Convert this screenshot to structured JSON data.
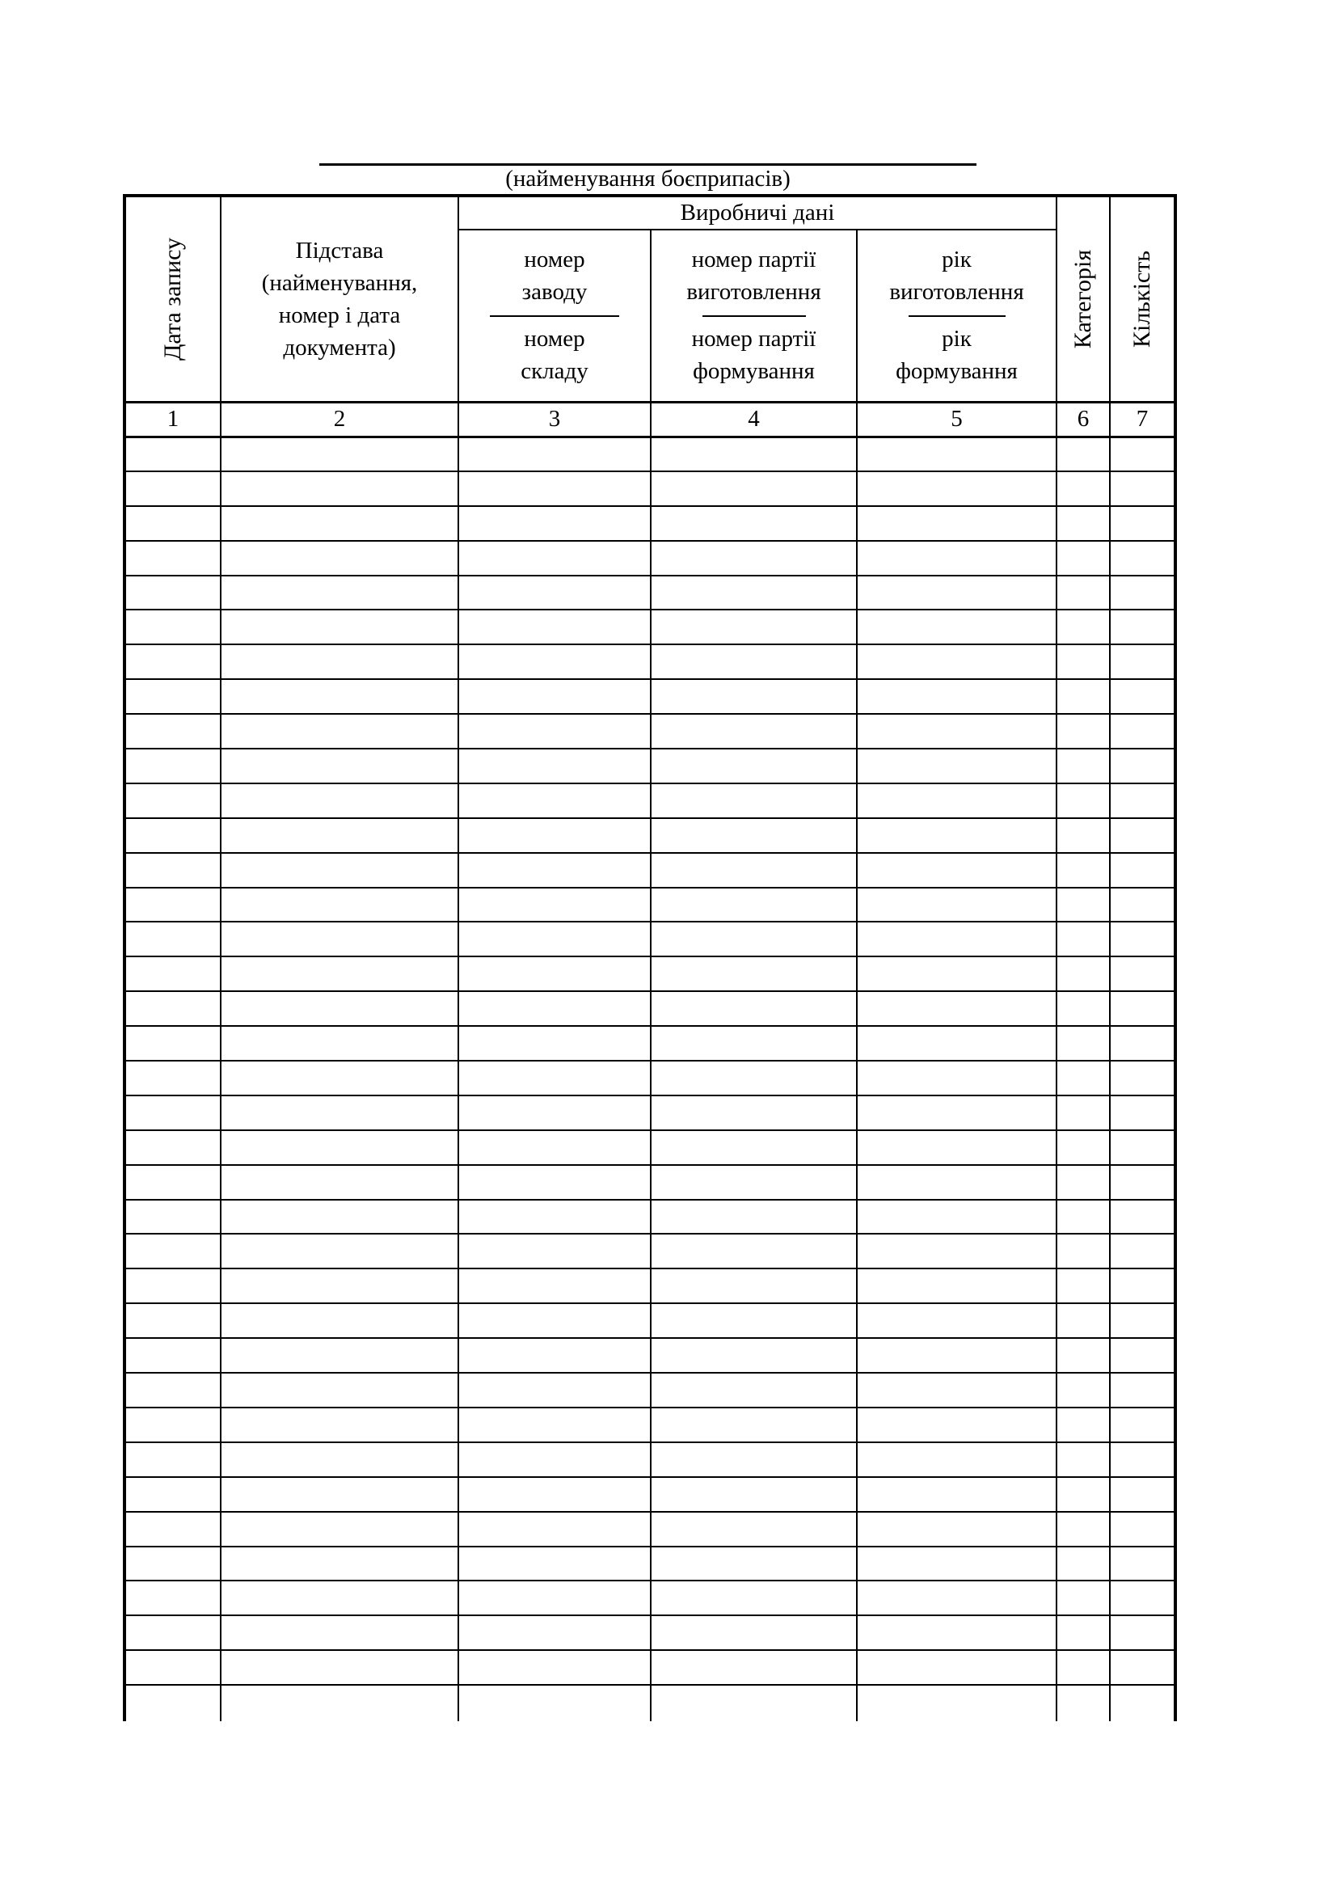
{
  "document": {
    "name_value": "",
    "caption": "(найменування боєприпасів)"
  },
  "table": {
    "production_group_label": "Виробничі дані",
    "columns": {
      "date_label": "Дата запису",
      "basis_label": "Підстава\n(найменування,\nномер і дата\nдокумента)",
      "production": [
        {
          "top": "номер\nзаводу",
          "bottom": "номер\nскладу"
        },
        {
          "top": "номер партії\nвиготовлення",
          "bottom": "номер партії\nформування"
        },
        {
          "top": "рік\nвиготовлення",
          "bottom": "рік\nформування"
        }
      ],
      "category_label": "Категорія",
      "quantity_label": "Кількість"
    },
    "number_row": [
      "1",
      "2",
      "3",
      "4",
      "5",
      "6",
      "7"
    ],
    "body": {
      "row_count": 37,
      "columns": 7,
      "empty_cell_value": ""
    }
  },
  "colors": {
    "ink": "#000000",
    "paper": "#ffffff"
  }
}
